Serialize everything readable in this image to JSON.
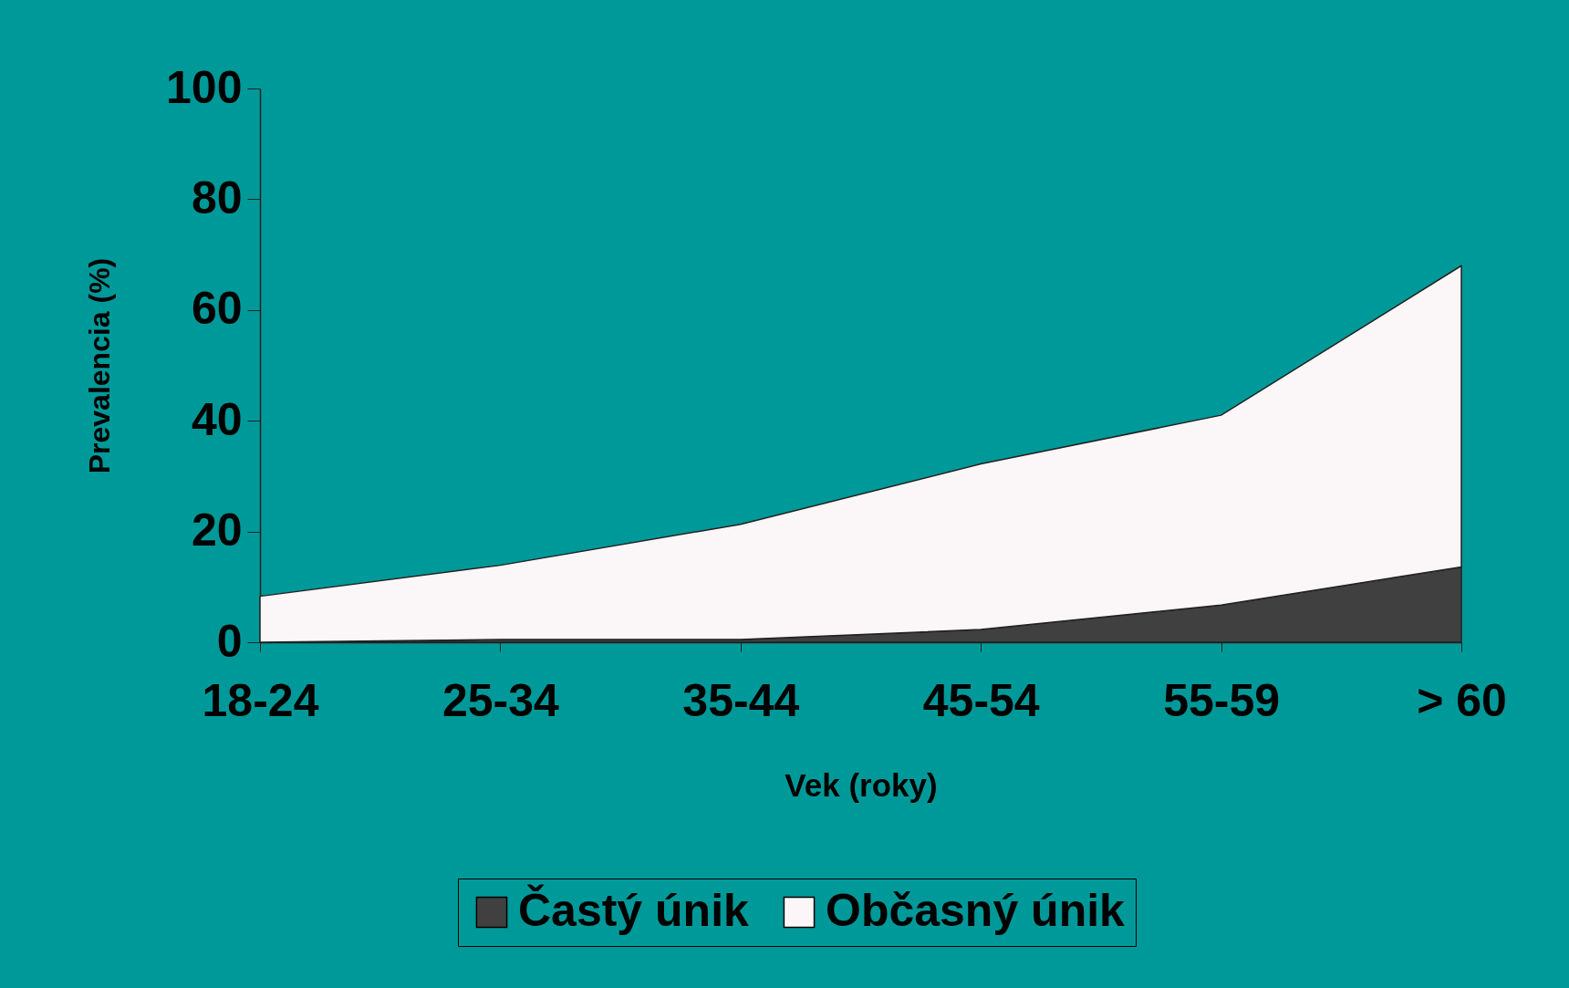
{
  "chart_data": {
    "type": "area",
    "stacked": true,
    "xlabel": "Vek (roky)",
    "ylabel": "Prevalencia (%)",
    "categories": [
      "18-24",
      "25-34",
      "35-44",
      "45-54",
      "55-59",
      "> 60"
    ],
    "series": [
      {
        "name": "Častý únik",
        "color": "#404040",
        "values": [
          0,
          0.5,
          0.5,
          2.3,
          6.7,
          13.6
        ]
      },
      {
        "name": "Občasný únik",
        "color": "#fbf6f8",
        "values": [
          8.3,
          13.4,
          20.8,
          29.9,
          34.3,
          54.4
        ]
      }
    ],
    "ylim": [
      0,
      100
    ],
    "yticks": [
      0,
      20,
      40,
      60,
      80,
      100
    ],
    "grid": false,
    "legend": "bottom",
    "marker": "none",
    "line_style": "solid"
  }
}
